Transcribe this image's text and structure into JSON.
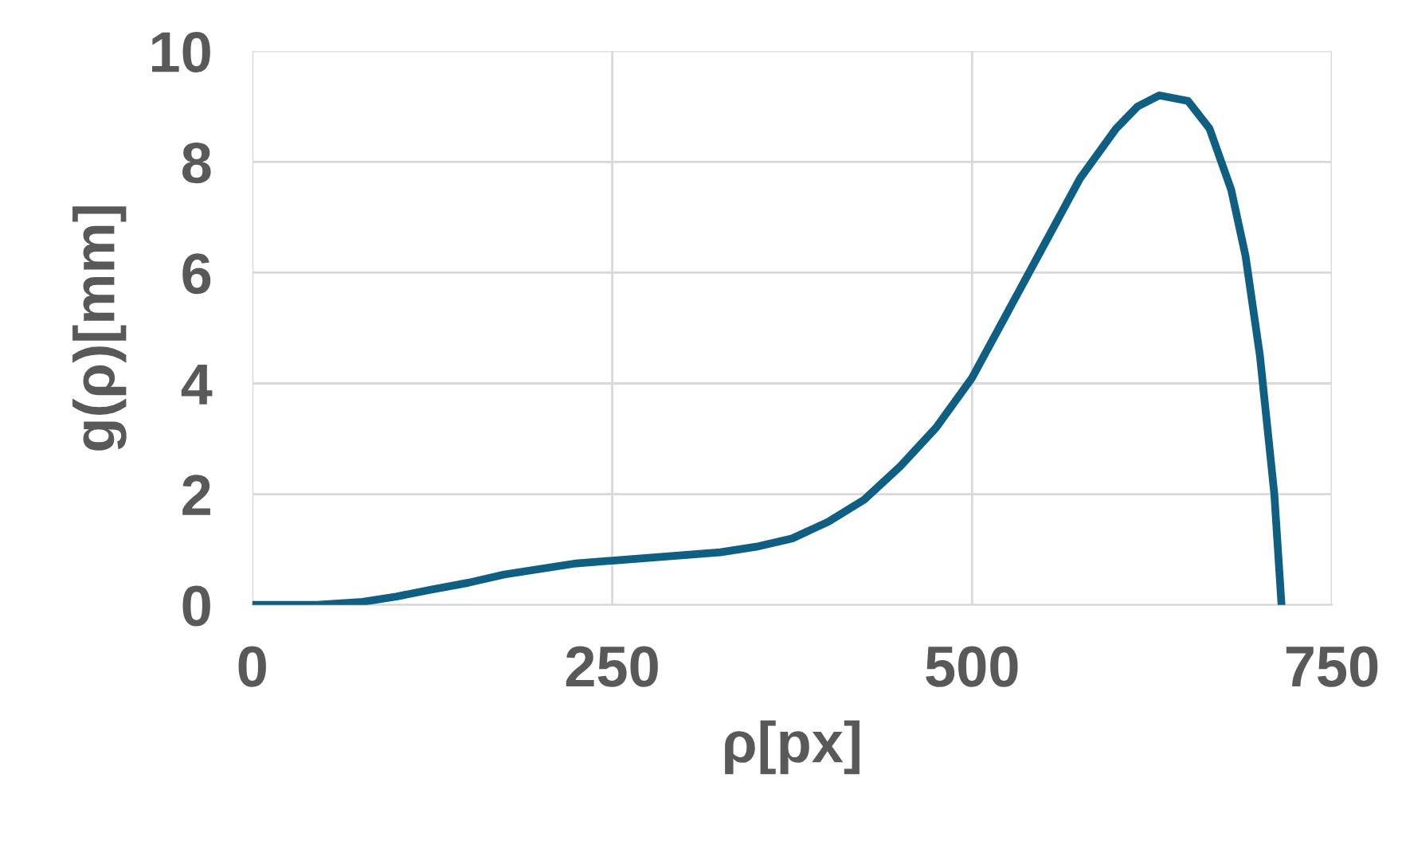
{
  "chart_data": {
    "type": "line",
    "xlabel": "ρ[px]",
    "ylabel": "g(ρ)[mm]",
    "series": [
      {
        "color": "#0e5f82",
        "x": [
          0,
          25,
          45,
          75,
          100,
          125,
          150,
          175,
          200,
          225,
          250,
          275,
          300,
          325,
          350,
          375,
          400,
          425,
          450,
          475,
          500,
          525,
          550,
          575,
          600,
          615,
          630,
          650,
          665,
          680,
          690,
          700,
          710,
          715
        ],
        "values": [
          0,
          0,
          0,
          0.05,
          0.15,
          0.28,
          0.4,
          0.55,
          0.65,
          0.75,
          0.8,
          0.85,
          0.9,
          0.95,
          1.05,
          1.2,
          1.5,
          1.9,
          2.5,
          3.2,
          4.1,
          5.3,
          6.5,
          7.7,
          8.6,
          9.0,
          9.2,
          9.1,
          8.6,
          7.5,
          6.3,
          4.5,
          2.0,
          0
        ]
      }
    ],
    "xlim": [
      0,
      750
    ],
    "xticks": [
      0,
      250,
      500,
      750
    ],
    "ylim": [
      0,
      10
    ],
    "yticks": [
      0,
      2,
      4,
      6,
      8,
      10
    ],
    "grid": true,
    "legend": false,
    "marker": "none",
    "line_style": "solid"
  }
}
